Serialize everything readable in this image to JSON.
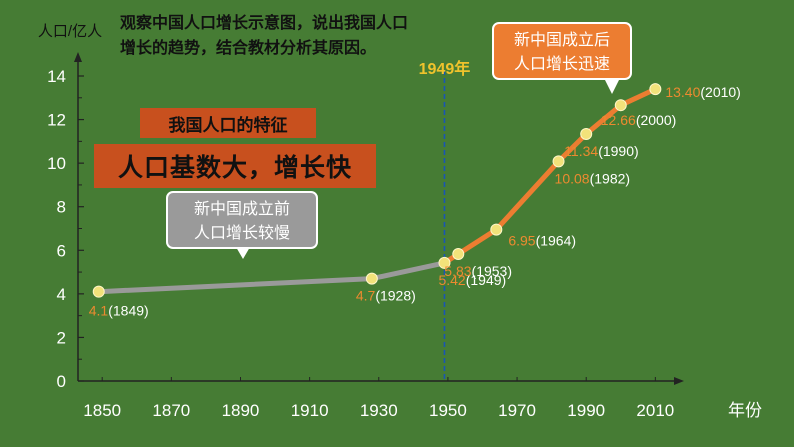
{
  "question": "观察中国人口增长示意图，说出我国人口增长的趋势，结合教材分析其原因。",
  "feature_title": "我国人口的特征",
  "feature_text": "人口基数大，增长快",
  "callout_before": [
    "新中国成立前",
    "人口增长较慢"
  ],
  "callout_after": [
    "新中国成立后",
    "人口增长迅速"
  ],
  "marker_label": "1949年",
  "colors": {
    "background": "#467c34",
    "before_line": "#9a9a9a",
    "after_line": "#ec7d31",
    "point": "#f2e27a",
    "value_label": "#ec8a30",
    "marker_line": "#1a55b4",
    "marker_text": "#f0c32c",
    "feature_box": "#c8501e"
  },
  "chart_data": {
    "type": "line",
    "ylabel": "人口/亿人",
    "xlabel": "年份",
    "ylim": [
      0,
      14
    ],
    "yticks": [
      0,
      2,
      4,
      6,
      8,
      10,
      12,
      14
    ],
    "xlim": [
      1843,
      2018
    ],
    "xticks": [
      1850,
      1870,
      1890,
      1910,
      1930,
      1950,
      1970,
      1990,
      2010
    ],
    "marker_year": 1949,
    "series": [
      {
        "x": [
          1849,
          1928,
          1949
        ],
        "values": [
          4.1,
          4.7,
          5.42
        ]
      },
      {
        "x": [
          1949,
          1953,
          1964,
          1982,
          1990,
          2000,
          2010
        ],
        "values": [
          5.42,
          5.83,
          6.95,
          10.08,
          11.34,
          12.66,
          13.4
        ]
      }
    ],
    "points": [
      {
        "x": 1849,
        "y": 4.1,
        "value": "4.1",
        "year": "(1849)"
      },
      {
        "x": 1928,
        "y": 4.7,
        "value": "4.7",
        "year": "(1928)"
      },
      {
        "x": 1949,
        "y": 5.42,
        "value": "5.42",
        "year": "(1949)"
      },
      {
        "x": 1953,
        "y": 5.83,
        "value": "5.83",
        "year": "(1953)"
      },
      {
        "x": 1964,
        "y": 6.95,
        "value": "6.95",
        "year": "(1964)"
      },
      {
        "x": 1982,
        "y": 10.08,
        "value": "10.08",
        "year": "(1982)"
      },
      {
        "x": 1990,
        "y": 11.34,
        "value": "11.34",
        "year": "(1990)"
      },
      {
        "x": 2000,
        "y": 12.66,
        "value": "12.66",
        "year": "(2000)"
      },
      {
        "x": 2010,
        "y": 13.4,
        "value": "13.40",
        "year": "(2010)"
      }
    ]
  }
}
